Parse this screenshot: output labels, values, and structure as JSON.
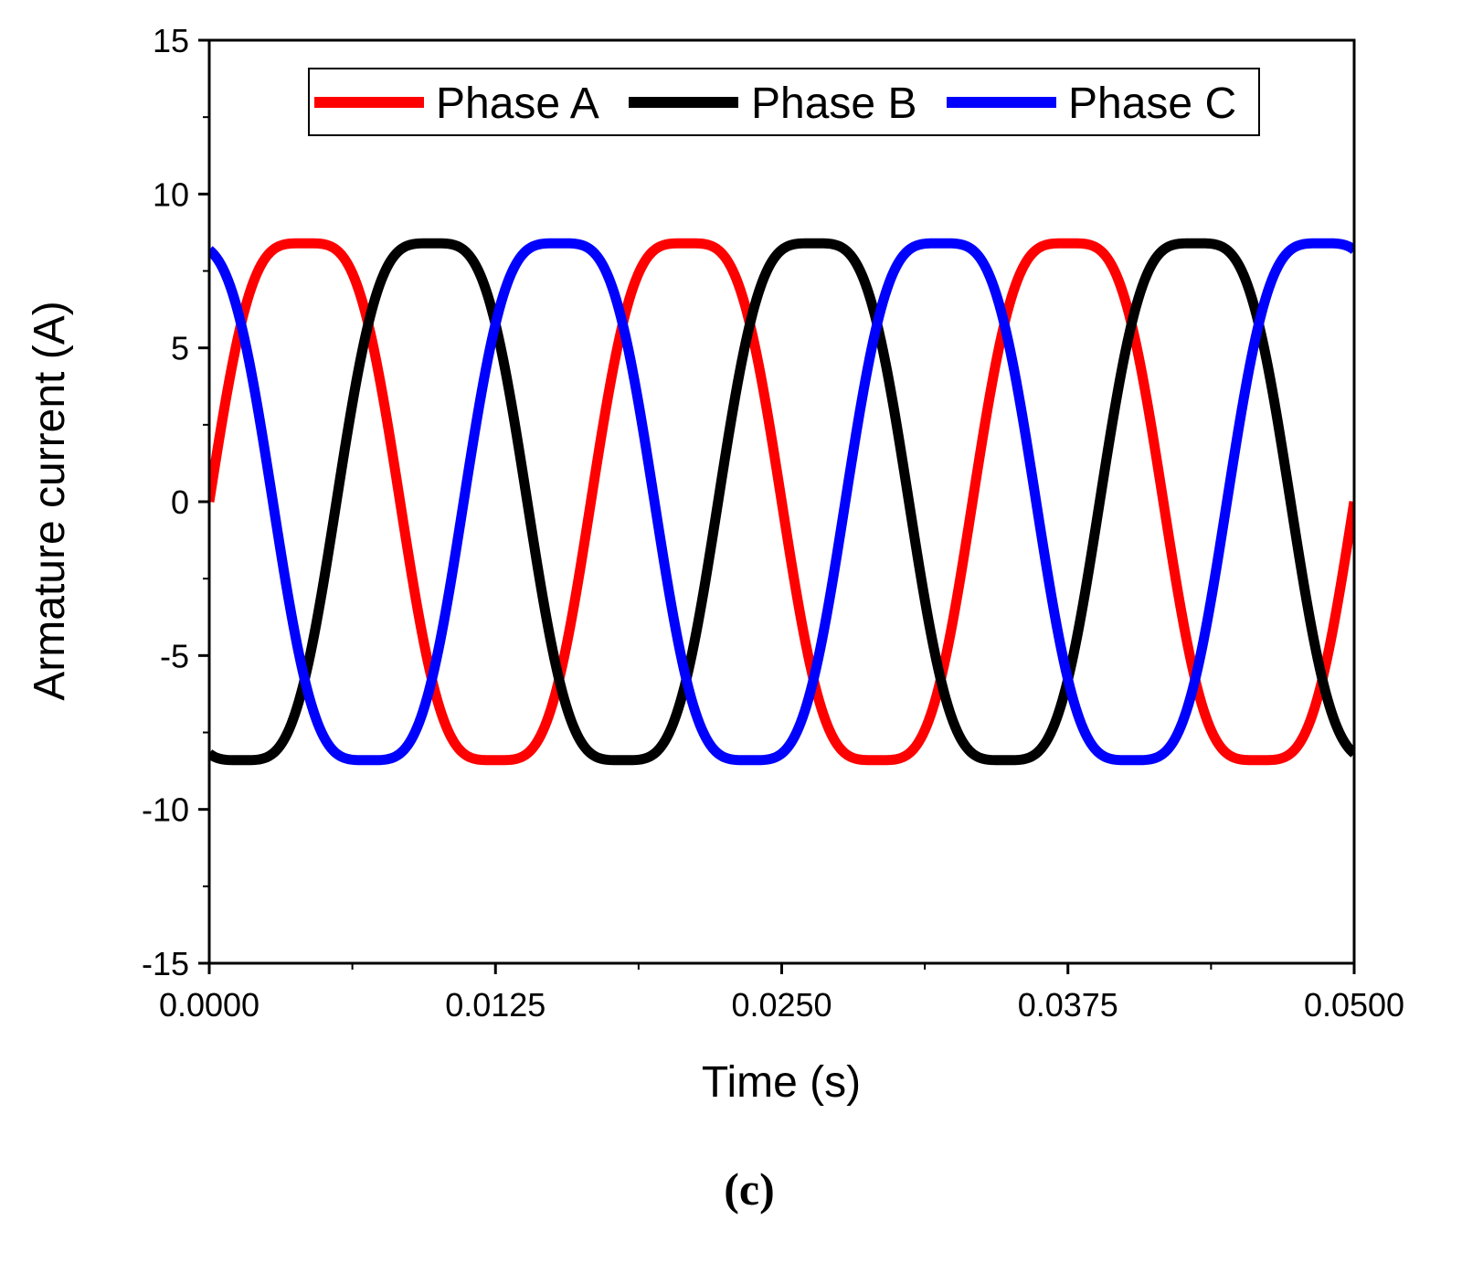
{
  "chart_data": {
    "type": "line",
    "title": "",
    "xlabel": "Time (s)",
    "ylabel": "Armature current (A)",
    "xlim": [
      0.0,
      0.05
    ],
    "ylim": [
      -15,
      15
    ],
    "x_ticks": [
      0.0,
      0.0125,
      0.025,
      0.0375,
      0.05
    ],
    "x_tick_labels": [
      "0.0000",
      "0.0125",
      "0.0250",
      "0.0375",
      "0.0500"
    ],
    "y_ticks": [
      15,
      10,
      5,
      0,
      -5,
      -10,
      -15
    ],
    "y_tick_labels": [
      "15",
      "10",
      "5",
      "0",
      "-5",
      "-10",
      "-15"
    ],
    "x_minor_ticks": [
      0.00625,
      0.01875,
      0.03125,
      0.04375
    ],
    "y_minor_ticks": [
      12.5,
      7.5,
      2.5,
      -2.5,
      -7.5,
      -12.5
    ],
    "grid": false,
    "legend": {
      "position": "top",
      "entries": [
        "Phase A",
        "Phase B",
        "Phase C"
      ]
    },
    "waveform": {
      "frequency_hz": 60,
      "fundamental_amplitude_a": 9.45,
      "third_harmonic_amplitude_a": 1.05,
      "peak_a": 8.9,
      "dip_a": 7.5,
      "sample_count": 600
    },
    "series": [
      {
        "name": "Phase A",
        "color": "#ff0000",
        "phase_deg": 0
      },
      {
        "name": "Phase B",
        "color": "#000000",
        "phase_deg": -120
      },
      {
        "name": "Phase C",
        "color": "#0000ff",
        "phase_deg": 120
      }
    ]
  },
  "caption": "(c)"
}
